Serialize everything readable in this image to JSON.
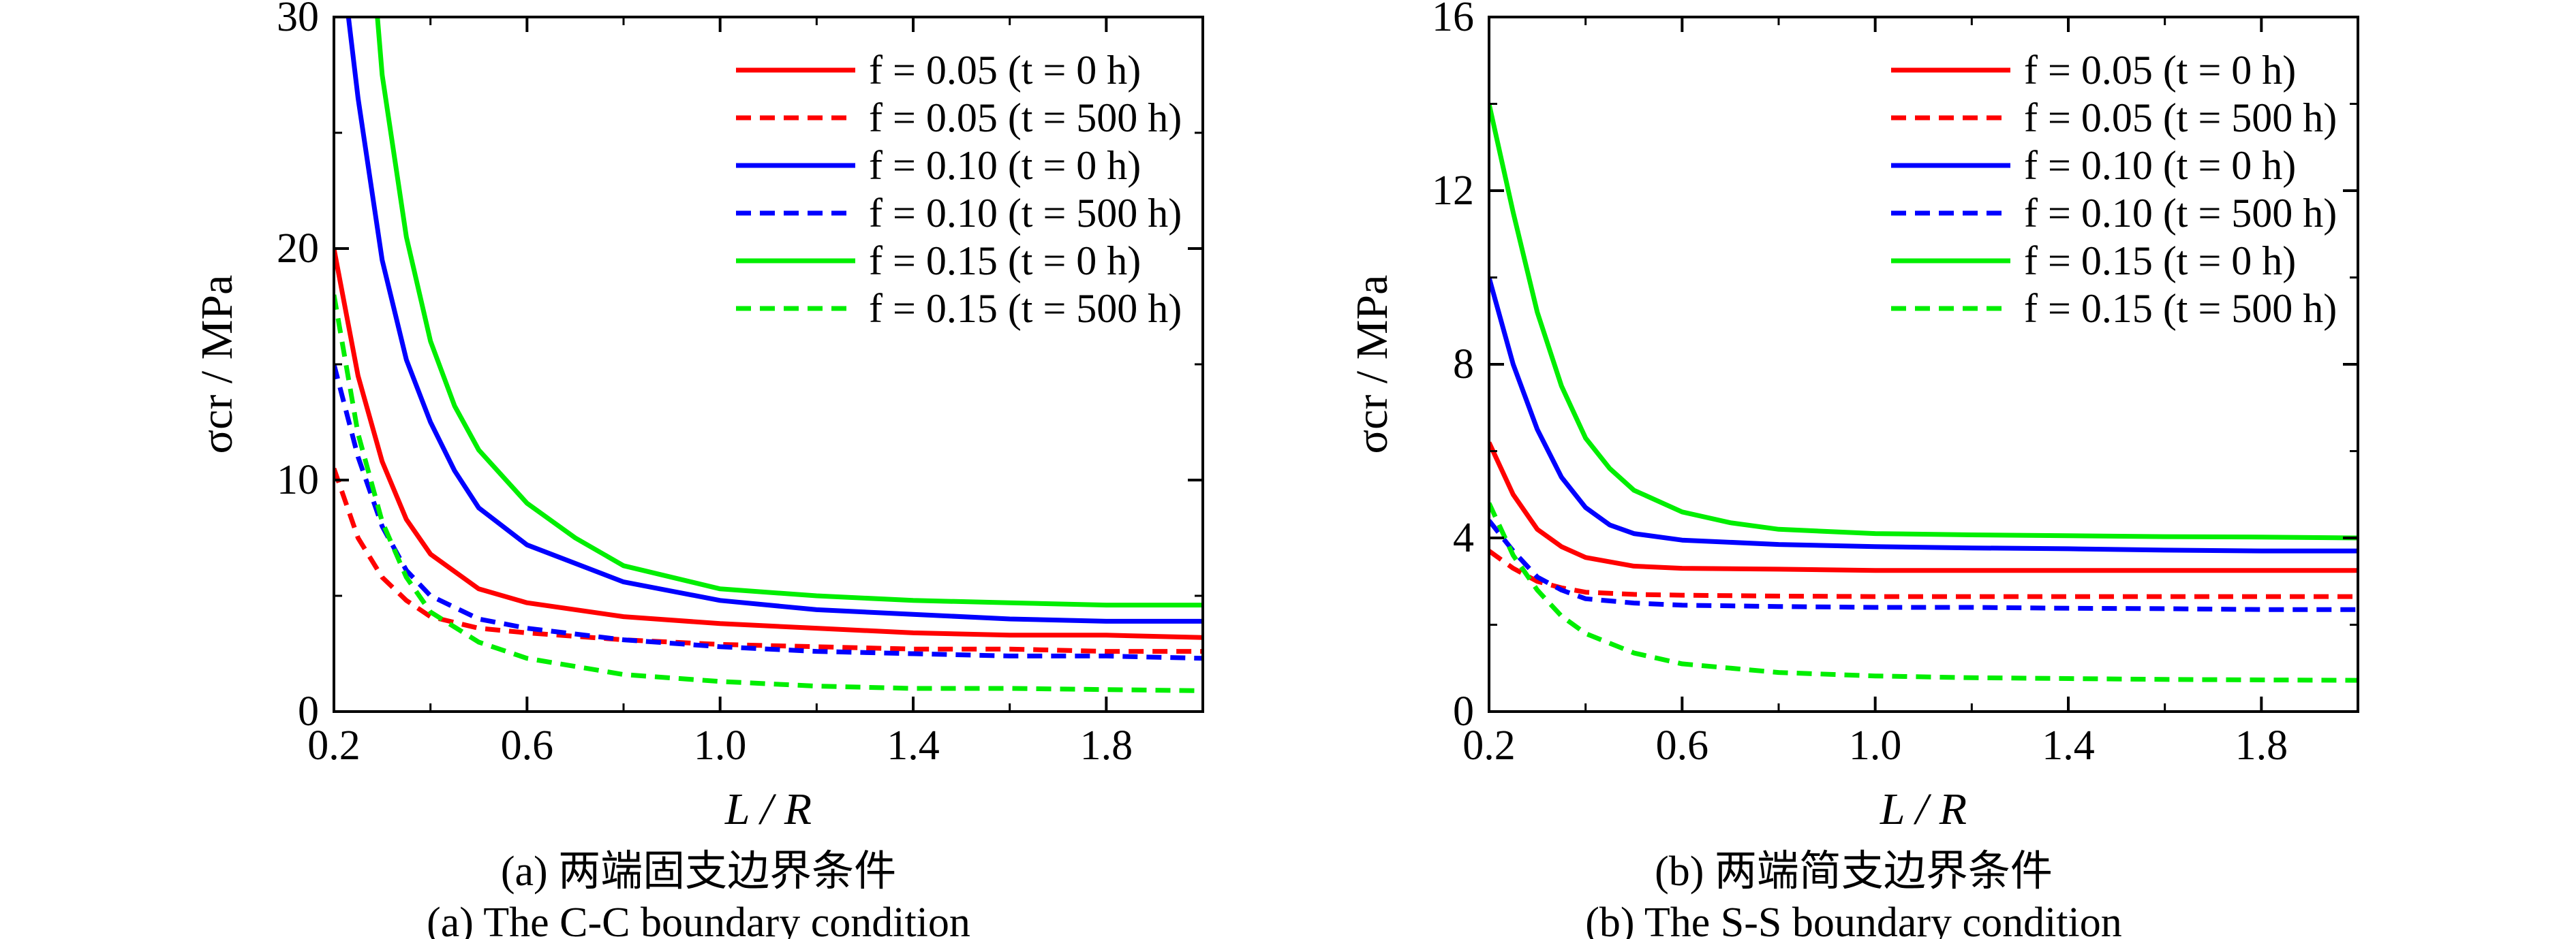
{
  "chart_data": [
    {
      "type": "line",
      "panel": "a",
      "caption_cn": "(a) 两端固支边界条件",
      "caption_en": "(a) The C-C boundary condition",
      "xlabel": "L / R",
      "ylabel": "σcr / MPa",
      "xlim": [
        0.2,
        2.0
      ],
      "ylim": [
        0,
        30
      ],
      "xticks": [
        0.2,
        0.6,
        1.0,
        1.4,
        1.8
      ],
      "yticks": [
        0,
        10,
        20,
        30
      ],
      "legend_position": "top-right",
      "series": [
        {
          "name": "f = 0.05 (t = 0 h)",
          "color": "#ff0000",
          "dash": "solid",
          "x": [
            0.2,
            0.25,
            0.3,
            0.35,
            0.4,
            0.5,
            0.6,
            0.8,
            1.0,
            1.2,
            1.4,
            1.6,
            1.8,
            2.0
          ],
          "y": [
            20.0,
            14.5,
            10.8,
            8.3,
            6.8,
            5.3,
            4.7,
            4.1,
            3.8,
            3.6,
            3.4,
            3.3,
            3.3,
            3.2
          ]
        },
        {
          "name": "f = 0.05 (t = 500 h)",
          "color": "#ff0000",
          "dash": "dashed",
          "x": [
            0.2,
            0.25,
            0.3,
            0.35,
            0.4,
            0.5,
            0.6,
            0.8,
            1.0,
            1.2,
            1.4,
            1.6,
            1.8,
            2.0
          ],
          "y": [
            10.5,
            7.5,
            5.8,
            4.8,
            4.1,
            3.6,
            3.4,
            3.1,
            2.9,
            2.8,
            2.7,
            2.7,
            2.6,
            2.6
          ]
        },
        {
          "name": "f = 0.10 (t = 0 h)",
          "color": "#0000ff",
          "dash": "solid",
          "x": [
            0.23,
            0.25,
            0.3,
            0.35,
            0.4,
            0.45,
            0.5,
            0.6,
            0.8,
            1.0,
            1.2,
            1.4,
            1.6,
            1.8,
            2.0
          ],
          "y": [
            30.0,
            26.5,
            19.5,
            15.2,
            12.5,
            10.4,
            8.8,
            7.2,
            5.6,
            4.8,
            4.4,
            4.2,
            4.0,
            3.9,
            3.9
          ]
        },
        {
          "name": "f = 0.10 (t = 500 h)",
          "color": "#0000ff",
          "dash": "dashed",
          "x": [
            0.2,
            0.25,
            0.3,
            0.35,
            0.4,
            0.5,
            0.6,
            0.8,
            1.0,
            1.2,
            1.4,
            1.6,
            1.8,
            2.0
          ],
          "y": [
            15.0,
            11.0,
            8.0,
            6.1,
            5.0,
            4.0,
            3.6,
            3.1,
            2.8,
            2.6,
            2.5,
            2.4,
            2.4,
            2.3
          ]
        },
        {
          "name": "f = 0.15 (t = 0 h)",
          "color": "#00ee00",
          "dash": "solid",
          "x": [
            0.29,
            0.3,
            0.35,
            0.4,
            0.45,
            0.5,
            0.6,
            0.7,
            0.8,
            1.0,
            1.2,
            1.4,
            1.6,
            1.8,
            2.0
          ],
          "y": [
            30.0,
            27.5,
            20.5,
            16.0,
            13.2,
            11.3,
            9.0,
            7.5,
            6.3,
            5.3,
            5.0,
            4.8,
            4.7,
            4.6,
            4.6
          ]
        },
        {
          "name": "f = 0.15 (t = 500 h)",
          "color": "#00ee00",
          "dash": "dashed",
          "x": [
            0.2,
            0.25,
            0.3,
            0.35,
            0.4,
            0.5,
            0.6,
            0.8,
            1.0,
            1.2,
            1.4,
            1.6,
            1.8,
            2.0
          ],
          "y": [
            18.0,
            12.0,
            8.2,
            5.8,
            4.3,
            3.0,
            2.3,
            1.6,
            1.3,
            1.1,
            1.0,
            1.0,
            0.95,
            0.9
          ]
        }
      ]
    },
    {
      "type": "line",
      "panel": "b",
      "caption_cn": "(b) 两端简支边界条件",
      "caption_en": "(b) The S-S boundary condition",
      "xlabel": "L / R",
      "ylabel": "σcr / MPa",
      "xlim": [
        0.2,
        2.0
      ],
      "ylim": [
        0,
        16
      ],
      "xticks": [
        0.2,
        0.6,
        1.0,
        1.4,
        1.8
      ],
      "yticks": [
        0,
        4,
        8,
        12,
        16
      ],
      "legend_position": "top-right",
      "series": [
        {
          "name": "f = 0.05 (t = 0 h)",
          "color": "#ff0000",
          "dash": "solid",
          "x": [
            0.2,
            0.25,
            0.3,
            0.35,
            0.4,
            0.5,
            0.6,
            0.8,
            1.0,
            1.2,
            1.4,
            1.6,
            1.8,
            2.0
          ],
          "y": [
            6.2,
            5.0,
            4.2,
            3.8,
            3.55,
            3.35,
            3.3,
            3.28,
            3.25,
            3.25,
            3.25,
            3.25,
            3.25,
            3.25
          ]
        },
        {
          "name": "f = 0.05 (t = 500 h)",
          "color": "#ff0000",
          "dash": "dashed",
          "x": [
            0.2,
            0.25,
            0.3,
            0.35,
            0.4,
            0.5,
            0.6,
            0.8,
            1.0,
            1.2,
            1.4,
            1.6,
            1.8,
            2.0
          ],
          "y": [
            3.7,
            3.3,
            3.0,
            2.85,
            2.75,
            2.7,
            2.68,
            2.66,
            2.65,
            2.65,
            2.65,
            2.65,
            2.65,
            2.65
          ]
        },
        {
          "name": "f = 0.10 (t = 0 h)",
          "color": "#0000ff",
          "dash": "solid",
          "x": [
            0.2,
            0.25,
            0.3,
            0.35,
            0.4,
            0.45,
            0.5,
            0.6,
            0.8,
            1.0,
            1.2,
            1.4,
            1.6,
            1.8,
            2.0
          ],
          "y": [
            10.0,
            8.0,
            6.5,
            5.4,
            4.7,
            4.3,
            4.1,
            3.95,
            3.85,
            3.8,
            3.77,
            3.75,
            3.72,
            3.7,
            3.7
          ]
        },
        {
          "name": "f = 0.10 (t = 500 h)",
          "color": "#0000ff",
          "dash": "dashed",
          "x": [
            0.2,
            0.25,
            0.3,
            0.35,
            0.4,
            0.5,
            0.6,
            0.8,
            1.0,
            1.2,
            1.4,
            1.6,
            1.8,
            2.0
          ],
          "y": [
            4.4,
            3.7,
            3.1,
            2.8,
            2.6,
            2.5,
            2.45,
            2.42,
            2.4,
            2.4,
            2.38,
            2.37,
            2.35,
            2.35
          ]
        },
        {
          "name": "f = 0.15 (t = 0 h)",
          "color": "#00ee00",
          "dash": "solid",
          "x": [
            0.2,
            0.25,
            0.3,
            0.35,
            0.4,
            0.45,
            0.5,
            0.6,
            0.7,
            0.8,
            1.0,
            1.2,
            1.4,
            1.6,
            1.8,
            2.0
          ],
          "y": [
            14.0,
            11.5,
            9.2,
            7.5,
            6.3,
            5.6,
            5.1,
            4.6,
            4.35,
            4.2,
            4.1,
            4.07,
            4.05,
            4.03,
            4.02,
            4.0
          ]
        },
        {
          "name": "f = 0.15 (t = 500 h)",
          "color": "#00ee00",
          "dash": "dashed",
          "x": [
            0.2,
            0.25,
            0.3,
            0.35,
            0.4,
            0.5,
            0.6,
            0.8,
            1.0,
            1.2,
            1.4,
            1.6,
            1.8,
            2.0
          ],
          "y": [
            4.8,
            3.6,
            2.8,
            2.2,
            1.8,
            1.35,
            1.1,
            0.9,
            0.82,
            0.78,
            0.76,
            0.74,
            0.73,
            0.72
          ]
        }
      ]
    }
  ]
}
